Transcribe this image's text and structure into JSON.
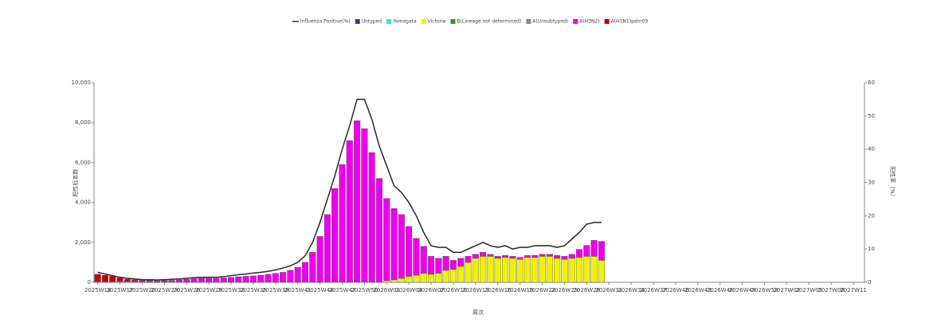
{
  "chart_data": {
    "type": "bar",
    "y_label": "阳性标本数",
    "y2_label": "阳性率（%）",
    "x_label": "周次",
    "categories": [
      "2025W14",
      null,
      null,
      "2025W17",
      null,
      null,
      "2025W20",
      null,
      null,
      "2025W23",
      null,
      null,
      "2025W26",
      null,
      null,
      "2025W29",
      null,
      null,
      "2025W32",
      null,
      null,
      "2025W35",
      null,
      null,
      "2025W38",
      null,
      null,
      "2025W41",
      null,
      null,
      "2025W44",
      null,
      null,
      "2025W47",
      null,
      null,
      "2025W50",
      null,
      null,
      "2026W01",
      null,
      null,
      "2026W04",
      null,
      null,
      "2026W07",
      null,
      null,
      "2026W10",
      null,
      null,
      "2026W13",
      null,
      null,
      "2026W16",
      null,
      null,
      "2026W19",
      null,
      null,
      "2026W22",
      null,
      null,
      "2026W25",
      null,
      null,
      "2026W28",
      null,
      null,
      "2026W31",
      null,
      null,
      "2026W34",
      null,
      null,
      "2026W37",
      null,
      null,
      "2026W40",
      null,
      null,
      "2026W43",
      null,
      null,
      "2026W46",
      null,
      null,
      "2026W49",
      null,
      null,
      "2026W52",
      null,
      null,
      "2027W02",
      null,
      null,
      "2027W05",
      null,
      null,
      "2027W08",
      null,
      null,
      "2027W11",
      null
    ],
    "ylim": [
      0,
      10000
    ],
    "yticks": [
      0,
      {
        "value": 2000,
        "label": "2,000"
      },
      {
        "value": 4000,
        "label": "4,000"
      },
      {
        "value": 6000,
        "label": "6,000"
      },
      {
        "value": 8000,
        "label": "8,000"
      },
      {
        "value": 10000,
        "label": "10,000"
      }
    ],
    "y2lim": [
      0,
      60
    ],
    "y2ticks": [
      0,
      10,
      20,
      30,
      40,
      50,
      60
    ],
    "series": [
      {
        "name": "Influenza Positive(%)",
        "type": "line",
        "axis": "y2",
        "color": "#333333",
        "values": [
          3.0,
          2.5,
          2.0,
          1.5,
          1.2,
          1.0,
          0.8,
          0.8,
          0.7,
          0.8,
          0.9,
          1.0,
          1.2,
          1.4,
          1.5,
          1.5,
          1.5,
          1.7,
          2.0,
          2.3,
          2.5,
          2.8,
          3.0,
          3.3,
          3.7,
          4.3,
          5.0,
          6.0,
          8.0,
          12,
          18,
          25,
          32,
          40,
          47,
          55,
          55,
          49,
          41,
          35,
          29,
          27,
          24,
          20,
          15,
          11,
          10.5,
          10.5,
          9,
          9,
          10,
          11,
          12,
          11,
          10.5,
          11,
          10,
          10.5,
          10.5,
          11,
          11,
          11,
          10.5,
          11,
          13,
          15,
          17.5,
          18,
          18,
          null,
          null,
          null,
          null,
          null,
          null,
          null,
          null,
          null,
          null,
          null,
          null,
          null,
          null,
          null,
          null,
          null,
          null,
          null,
          null,
          null,
          null,
          null,
          null,
          null,
          null,
          null,
          null,
          null,
          null,
          null,
          null,
          null,
          null,
          null
        ]
      },
      {
        "name": "Untyped",
        "color": "#3a3a9a",
        "values": [
          0,
          0,
          0,
          0,
          0,
          0,
          0,
          0,
          0,
          0,
          0,
          0,
          0,
          0,
          0,
          0,
          0,
          0,
          0,
          0,
          0,
          0,
          0,
          0,
          0,
          0,
          0,
          0,
          0,
          0,
          0,
          0,
          0,
          0,
          0,
          0,
          0,
          0,
          0,
          0,
          0,
          0,
          0,
          0,
          0,
          0,
          0,
          0,
          0,
          0,
          0,
          0,
          0,
          0,
          0,
          0,
          0,
          0,
          0,
          0,
          0,
          0,
          0,
          0,
          0,
          0,
          0,
          0,
          0,
          null,
          null,
          null,
          null,
          null,
          null,
          null,
          null,
          null,
          null,
          null,
          null,
          null,
          null,
          null,
          null,
          null,
          null,
          null,
          null,
          null,
          null,
          null,
          null,
          null,
          null,
          null,
          null,
          null,
          null,
          null,
          null,
          null,
          null,
          null
        ]
      },
      {
        "name": "Yamagata",
        "color": "#33e0e0",
        "values": [
          0,
          0,
          0,
          0,
          0,
          0,
          0,
          0,
          0,
          0,
          0,
          0,
          0,
          0,
          0,
          0,
          0,
          0,
          0,
          0,
          0,
          0,
          0,
          0,
          0,
          0,
          0,
          0,
          0,
          0,
          0,
          0,
          0,
          0,
          0,
          0,
          0,
          0,
          0,
          0,
          0,
          0,
          0,
          0,
          0,
          0,
          0,
          0,
          0,
          0,
          0,
          0,
          0,
          0,
          0,
          0,
          0,
          0,
          0,
          0,
          0,
          0,
          0,
          0,
          0,
          0,
          0,
          0,
          0,
          null,
          null,
          null,
          null,
          null,
          null,
          null,
          null,
          null,
          null,
          null,
          null,
          null,
          null,
          null,
          null,
          null,
          null,
          null,
          null,
          null,
          null,
          null,
          null,
          null,
          null,
          null,
          null,
          null,
          null,
          null,
          null,
          null,
          null,
          null
        ]
      },
      {
        "name": "Victoria",
        "color": "#f2f200",
        "values": [
          0,
          0,
          0,
          0,
          0,
          0,
          0,
          0,
          0,
          0,
          0,
          0,
          0,
          0,
          0,
          0,
          0,
          0,
          0,
          0,
          0,
          0,
          0,
          0,
          0,
          0,
          0,
          0,
          0,
          0,
          0,
          0,
          0,
          0,
          0,
          0,
          0,
          0,
          0,
          80,
          120,
          200,
          300,
          350,
          450,
          400,
          450,
          600,
          650,
          800,
          1000,
          1200,
          1300,
          1300,
          1200,
          1250,
          1200,
          1150,
          1250,
          1250,
          1300,
          1300,
          1200,
          1150,
          1200,
          1250,
          1300,
          1300,
          1100,
          null,
          null,
          null,
          null,
          null,
          null,
          null,
          null,
          null,
          null,
          null,
          null,
          null,
          null,
          null,
          null,
          null,
          null,
          null,
          null,
          null,
          null,
          null,
          null,
          null,
          null,
          null,
          null,
          null,
          null,
          null,
          null,
          null,
          null,
          null
        ]
      },
      {
        "name": "B(Lineage not determined)",
        "color": "#2a9a2a",
        "values": [
          0,
          0,
          0,
          0,
          0,
          0,
          0,
          0,
          0,
          0,
          0,
          0,
          0,
          0,
          0,
          0,
          0,
          0,
          0,
          0,
          0,
          0,
          0,
          0,
          0,
          0,
          0,
          0,
          0,
          0,
          0,
          0,
          0,
          0,
          0,
          0,
          0,
          0,
          0,
          0,
          0,
          0,
          0,
          0,
          0,
          0,
          0,
          0,
          0,
          0,
          0,
          0,
          0,
          0,
          0,
          0,
          0,
          0,
          0,
          0,
          0,
          0,
          0,
          0,
          0,
          0,
          0,
          0,
          0,
          null,
          null,
          null,
          null,
          null,
          null,
          null,
          null,
          null,
          null,
          null,
          null,
          null,
          null,
          null,
          null,
          null,
          null,
          null,
          null,
          null,
          null,
          null,
          null,
          null,
          null,
          null,
          null,
          null,
          null,
          null,
          null,
          null,
          null,
          null
        ]
      },
      {
        "name": "A(Unsubtyped)",
        "color": "#888888",
        "values": [
          0,
          0,
          0,
          0,
          0,
          0,
          0,
          0,
          0,
          0,
          0,
          0,
          0,
          0,
          0,
          0,
          0,
          0,
          0,
          0,
          0,
          0,
          0,
          0,
          0,
          0,
          0,
          0,
          0,
          0,
          0,
          0,
          0,
          0,
          0,
          0,
          0,
          0,
          0,
          0,
          0,
          0,
          0,
          0,
          0,
          0,
          0,
          0,
          0,
          0,
          0,
          0,
          0,
          0,
          0,
          0,
          0,
          0,
          0,
          0,
          0,
          0,
          0,
          0,
          0,
          0,
          0,
          0,
          0,
          null,
          null,
          null,
          null,
          null,
          null,
          null,
          null,
          null,
          null,
          null,
          null,
          null,
          null,
          null,
          null,
          null,
          null,
          null,
          null,
          null,
          null,
          null,
          null,
          null,
          null,
          null,
          null,
          null,
          null,
          null,
          null,
          null,
          null,
          null
        ]
      },
      {
        "name": "A(H3N2)",
        "color": "#ee00ee",
        "values": [
          50,
          50,
          50,
          70,
          70,
          80,
          80,
          80,
          70,
          80,
          95,
          115,
          145,
          175,
          195,
          195,
          195,
          215,
          245,
          275,
          295,
          315,
          345,
          395,
          445,
          495,
          595,
          745,
          995,
          1495,
          2295,
          3395,
          4695,
          5895,
          7095,
          8095,
          7695,
          6495,
          5195,
          4115,
          3575,
          3195,
          2495,
          1845,
          1345,
          895,
          745,
          695,
          445,
          395,
          295,
          195,
          195,
          95,
          95,
          95,
          95,
          95,
          95,
          95,
          95,
          95,
          145,
          145,
          195,
          395,
          545,
          795,
          945,
          null,
          null,
          null,
          null,
          null,
          null,
          null,
          null,
          null,
          null,
          null,
          null,
          null,
          null,
          null,
          null,
          null,
          null,
          null,
          null,
          null,
          null,
          null,
          null,
          null,
          null,
          null,
          null,
          null,
          null,
          null,
          null,
          null,
          null,
          null
        ]
      },
      {
        "name": "A(H1N1)pdm09",
        "color": "#c00000",
        "values": [
          350,
          300,
          250,
          150,
          80,
          40,
          20,
          10,
          10,
          10,
          5,
          5,
          5,
          5,
          5,
          5,
          5,
          5,
          5,
          5,
          5,
          5,
          5,
          5,
          5,
          5,
          5,
          5,
          5,
          5,
          5,
          5,
          5,
          5,
          5,
          5,
          5,
          5,
          5,
          5,
          5,
          5,
          5,
          5,
          5,
          5,
          5,
          5,
          5,
          5,
          5,
          5,
          5,
          5,
          5,
          5,
          5,
          5,
          5,
          5,
          5,
          5,
          5,
          5,
          5,
          5,
          5,
          5,
          5,
          null,
          null,
          null,
          null,
          null,
          null,
          null,
          null,
          null,
          null,
          null,
          null,
          null,
          null,
          null,
          null,
          null,
          null,
          null,
          null,
          null,
          null,
          null,
          null,
          null,
          null,
          null,
          null,
          null,
          null,
          null,
          null,
          null,
          null,
          null
        ]
      }
    ]
  }
}
